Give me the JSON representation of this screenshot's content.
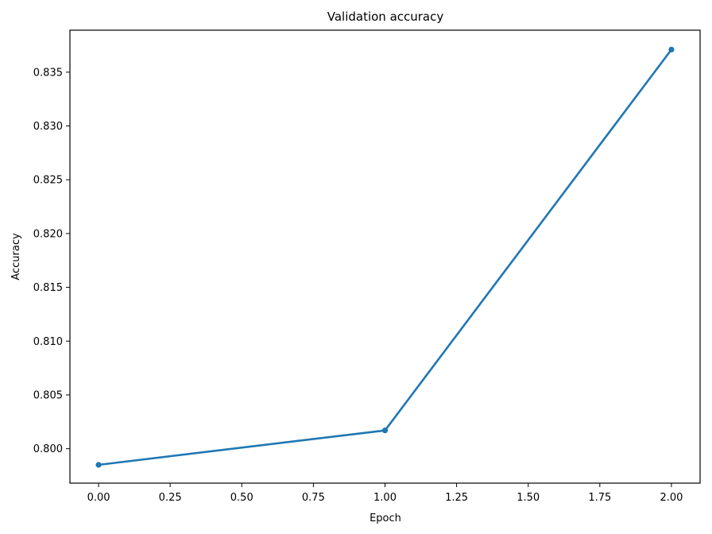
{
  "chart_data": {
    "type": "line",
    "title": "Validation accuracy",
    "xlabel": "Epoch",
    "ylabel": "Accuracy",
    "xlim": [
      -0.1,
      2.1
    ],
    "ylim": [
      0.7968,
      0.8389
    ],
    "xticks": [
      "0.00",
      "0.25",
      "0.50",
      "0.75",
      "1.00",
      "1.25",
      "1.50",
      "1.75",
      "2.00"
    ],
    "yticks": [
      "0.800",
      "0.805",
      "0.810",
      "0.815",
      "0.820",
      "0.825",
      "0.830",
      "0.835"
    ],
    "grid": false,
    "series": [
      {
        "color": "#1f77b4",
        "marker": "circle",
        "x": [
          0,
          1,
          2
        ],
        "y": [
          0.7985,
          0.8017,
          0.8371
        ]
      }
    ]
  }
}
